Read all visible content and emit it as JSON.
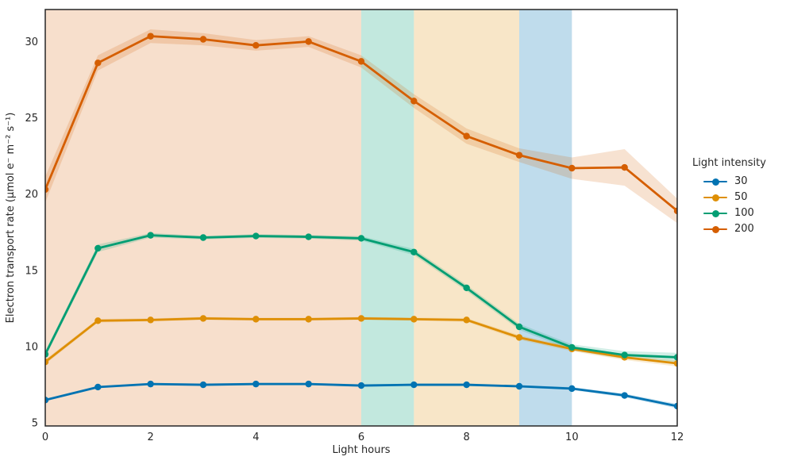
{
  "chart_data": {
    "type": "line",
    "title": "",
    "xlabel": "Light hours",
    "ylabel": "Electron transport rate (μmol e⁻ m⁻² s⁻¹)",
    "x": [
      0,
      1,
      2,
      3,
      4,
      5,
      6,
      7,
      8,
      9,
      10,
      11,
      12
    ],
    "xticks": [
      "0",
      "2",
      "4",
      "6",
      "8",
      "10",
      "12"
    ],
    "xtick_values": [
      0,
      2,
      4,
      6,
      8,
      10,
      12
    ],
    "yticks": [
      "5",
      "10",
      "15",
      "20",
      "25",
      "30"
    ],
    "ytick_values": [
      5,
      10,
      15,
      20,
      25,
      30
    ],
    "xlim": [
      0,
      12
    ],
    "ylim": [
      4.8,
      32.1
    ],
    "grid": false,
    "legend_position": "right-outside",
    "series": [
      {
        "name": "30",
        "color": "#0173B2",
        "values": [
          6.5,
          7.35,
          7.55,
          7.5,
          7.55,
          7.55,
          7.45,
          7.5,
          7.5,
          7.4,
          7.25,
          6.8,
          6.1
        ],
        "ci": [
          0.08,
          0.08,
          0.08,
          0.08,
          0.08,
          0.08,
          0.08,
          0.08,
          0.08,
          0.08,
          0.1,
          0.12,
          0.15
        ]
      },
      {
        "name": "50",
        "color": "#DE8F05",
        "values": [
          9.0,
          11.7,
          11.75,
          11.85,
          11.8,
          11.8,
          11.85,
          11.8,
          11.75,
          10.6,
          9.85,
          9.3,
          8.9
        ],
        "ci": [
          0.15,
          0.12,
          0.1,
          0.1,
          0.1,
          0.1,
          0.1,
          0.1,
          0.12,
          0.15,
          0.15,
          0.18,
          0.2
        ]
      },
      {
        "name": "100",
        "color": "#029E73",
        "values": [
          9.5,
          16.45,
          17.3,
          17.15,
          17.25,
          17.2,
          17.1,
          16.2,
          13.85,
          11.3,
          9.95,
          9.45,
          9.3
        ],
        "ci": [
          0.2,
          0.25,
          0.15,
          0.12,
          0.12,
          0.12,
          0.15,
          0.2,
          0.2,
          0.2,
          0.2,
          0.25,
          0.3
        ]
      },
      {
        "name": "200",
        "color": "#D55E00",
        "values": [
          20.3,
          28.6,
          30.35,
          30.15,
          29.75,
          30.0,
          28.7,
          26.1,
          23.8,
          22.55,
          21.7,
          21.75,
          18.9
        ],
        "ci": [
          0.85,
          0.5,
          0.45,
          0.4,
          0.35,
          0.35,
          0.4,
          0.45,
          0.5,
          0.45,
          0.7,
          1.2,
          0.8
        ]
      }
    ],
    "background_bands": [
      {
        "x0": 0,
        "x1": 6,
        "fill": "rgba(213,94,0,0.2)"
      },
      {
        "x0": 6,
        "x1": 7,
        "fill": "rgba(2,158,115,0.24)"
      },
      {
        "x0": 7,
        "x1": 9,
        "fill": "rgba(222,143,5,0.22)"
      },
      {
        "x0": 9,
        "x1": 10,
        "fill": "rgba(1,115,178,0.25)"
      }
    ]
  },
  "legend": {
    "title": "Light intensity",
    "items": [
      "30",
      "50",
      "100",
      "200"
    ]
  },
  "style": {
    "text_color": "#262626",
    "spine_color": "#262626",
    "plot_bg": "#ffffff"
  }
}
